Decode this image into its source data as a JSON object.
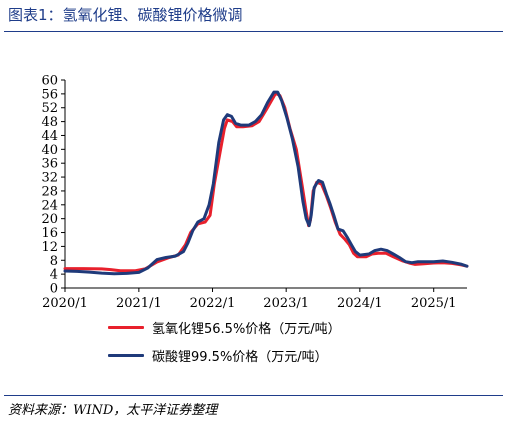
{
  "figure": {
    "title": "图表1：氢氧化锂、碳酸锂价格微调",
    "source": "资料来源：WIND，太平洋证券整理"
  },
  "colors": {
    "lioh": "#e8202c",
    "li2co3": "#1f3a7a",
    "axis": "#000000",
    "title": "#1f3d8a"
  },
  "chart_data": {
    "type": "line",
    "x_type": "date",
    "xticks": [
      "2020/1",
      "2021/1",
      "2022/1",
      "2023/1",
      "2024/1",
      "2025/1"
    ],
    "yticks": [
      0,
      4,
      8,
      12,
      16,
      20,
      24,
      28,
      32,
      36,
      40,
      44,
      48,
      52,
      56,
      60
    ],
    "ylim": [
      0,
      60
    ],
    "xlim": [
      "2020-01-01",
      "2025-06-15"
    ],
    "grid": false,
    "legend_position": "bottom",
    "series": [
      {
        "name": "氢氧化锂56.5%价格（万元/吨）",
        "color_key": "lioh",
        "points": [
          [
            "2020-01-01",
            5.6
          ],
          [
            "2020-04-01",
            5.6
          ],
          [
            "2020-07-01",
            5.5
          ],
          [
            "2020-08-15",
            5.3
          ],
          [
            "2020-10-01",
            5.0
          ],
          [
            "2020-12-15",
            5.0
          ],
          [
            "2021-02-01",
            5.5
          ],
          [
            "2021-04-01",
            7.5
          ],
          [
            "2021-06-01",
            8.8
          ],
          [
            "2021-07-15",
            9.5
          ],
          [
            "2021-08-20",
            12.5
          ],
          [
            "2021-09-15",
            16.0
          ],
          [
            "2021-10-20",
            18.5
          ],
          [
            "2021-11-25",
            19.0
          ],
          [
            "2021-12-20",
            21.0
          ],
          [
            "2022-01-10",
            30.0
          ],
          [
            "2022-02-10",
            40.0
          ],
          [
            "2022-03-01",
            46.0
          ],
          [
            "2022-03-15",
            48.5
          ],
          [
            "2022-04-10",
            48.0
          ],
          [
            "2022-05-01",
            46.5
          ],
          [
            "2022-06-01",
            46.5
          ],
          [
            "2022-07-15",
            46.8
          ],
          [
            "2022-08-20",
            48.0
          ],
          [
            "2022-09-25",
            51.5
          ],
          [
            "2022-10-20",
            54.0
          ],
          [
            "2022-11-10",
            56.2
          ],
          [
            "2022-12-01",
            55.5
          ],
          [
            "2022-12-25",
            52.0
          ],
          [
            "2023-01-20",
            46.0
          ],
          [
            "2023-02-20",
            40.0
          ],
          [
            "2023-03-20",
            30.0
          ],
          [
            "2023-04-10",
            22.0
          ],
          [
            "2023-04-22",
            18.0
          ],
          [
            "2023-05-01",
            19.5
          ],
          [
            "2023-05-15",
            28.0
          ],
          [
            "2023-06-01",
            30.5
          ],
          [
            "2023-06-25",
            30.0
          ],
          [
            "2023-07-20",
            26.5
          ],
          [
            "2023-08-10",
            23.0
          ],
          [
            "2023-09-01",
            19.0
          ],
          [
            "2023-09-25",
            15.5
          ],
          [
            "2023-10-20",
            14.0
          ],
          [
            "2023-11-10",
            12.5
          ],
          [
            "2023-12-01",
            10.0
          ],
          [
            "2023-12-20",
            9.0
          ],
          [
            "2024-02-01",
            9.0
          ],
          [
            "2024-03-01",
            9.8
          ],
          [
            "2024-04-01",
            10.0
          ],
          [
            "2024-05-10",
            10.0
          ],
          [
            "2024-06-15",
            9.0
          ],
          [
            "2024-08-01",
            7.8
          ],
          [
            "2024-09-01",
            7.2
          ],
          [
            "2024-10-01",
            6.8
          ],
          [
            "2024-11-15",
            7.0
          ],
          [
            "2025-01-01",
            7.2
          ],
          [
            "2025-02-15",
            7.3
          ],
          [
            "2025-04-01",
            7.1
          ],
          [
            "2025-05-15",
            6.7
          ],
          [
            "2025-06-15",
            6.3
          ]
        ]
      },
      {
        "name": "碳酸锂99.5%价格（万元/吨）",
        "color_key": "li2co3",
        "points": [
          [
            "2020-01-01",
            4.9
          ],
          [
            "2020-03-01",
            4.8
          ],
          [
            "2020-05-01",
            4.6
          ],
          [
            "2020-07-01",
            4.3
          ],
          [
            "2020-09-01",
            4.1
          ],
          [
            "2020-11-01",
            4.2
          ],
          [
            "2021-01-01",
            4.5
          ],
          [
            "2021-02-15",
            5.8
          ],
          [
            "2021-04-01",
            8.2
          ],
          [
            "2021-05-15",
            8.8
          ],
          [
            "2021-07-01",
            9.2
          ],
          [
            "2021-08-10",
            10.5
          ],
          [
            "2021-09-01",
            13.0
          ],
          [
            "2021-09-25",
            16.5
          ],
          [
            "2021-10-20",
            19.0
          ],
          [
            "2021-11-20",
            20.0
          ],
          [
            "2021-12-15",
            24.0
          ],
          [
            "2022-01-05",
            30.0
          ],
          [
            "2022-02-01",
            42.0
          ],
          [
            "2022-02-25",
            48.5
          ],
          [
            "2022-03-15",
            50.0
          ],
          [
            "2022-04-05",
            49.5
          ],
          [
            "2022-04-25",
            47.5
          ],
          [
            "2022-05-20",
            47.0
          ],
          [
            "2022-07-01",
            47.0
          ],
          [
            "2022-08-01",
            48.0
          ],
          [
            "2022-09-01",
            50.0
          ],
          [
            "2022-10-01",
            53.5
          ],
          [
            "2022-11-01",
            56.5
          ],
          [
            "2022-11-20",
            56.5
          ],
          [
            "2022-12-10",
            54.0
          ],
          [
            "2023-01-05",
            49.0
          ],
          [
            "2023-02-01",
            43.0
          ],
          [
            "2023-03-01",
            35.0
          ],
          [
            "2023-03-25",
            25.0
          ],
          [
            "2023-04-10",
            20.0
          ],
          [
            "2023-04-25",
            18.0
          ],
          [
            "2023-05-05",
            21.0
          ],
          [
            "2023-05-20",
            29.0
          ],
          [
            "2023-06-10",
            31.0
          ],
          [
            "2023-06-30",
            30.5
          ],
          [
            "2023-07-20",
            27.0
          ],
          [
            "2023-08-05",
            24.5
          ],
          [
            "2023-08-25",
            21.0
          ],
          [
            "2023-09-15",
            17.0
          ],
          [
            "2023-10-10",
            16.5
          ],
          [
            "2023-11-01",
            14.5
          ],
          [
            "2023-11-20",
            12.5
          ],
          [
            "2023-12-10",
            10.5
          ],
          [
            "2024-01-01",
            9.5
          ],
          [
            "2024-02-15",
            9.8
          ],
          [
            "2024-03-15",
            10.8
          ],
          [
            "2024-04-15",
            11.2
          ],
          [
            "2024-05-15",
            10.8
          ],
          [
            "2024-06-15",
            9.8
          ],
          [
            "2024-07-15",
            8.8
          ],
          [
            "2024-08-15",
            7.6
          ],
          [
            "2024-09-15",
            7.3
          ],
          [
            "2024-10-15",
            7.6
          ],
          [
            "2024-11-15",
            7.6
          ],
          [
            "2025-01-01",
            7.6
          ],
          [
            "2025-02-15",
            7.8
          ],
          [
            "2025-04-01",
            7.4
          ],
          [
            "2025-05-15",
            6.9
          ],
          [
            "2025-06-15",
            6.3
          ]
        ]
      }
    ]
  }
}
